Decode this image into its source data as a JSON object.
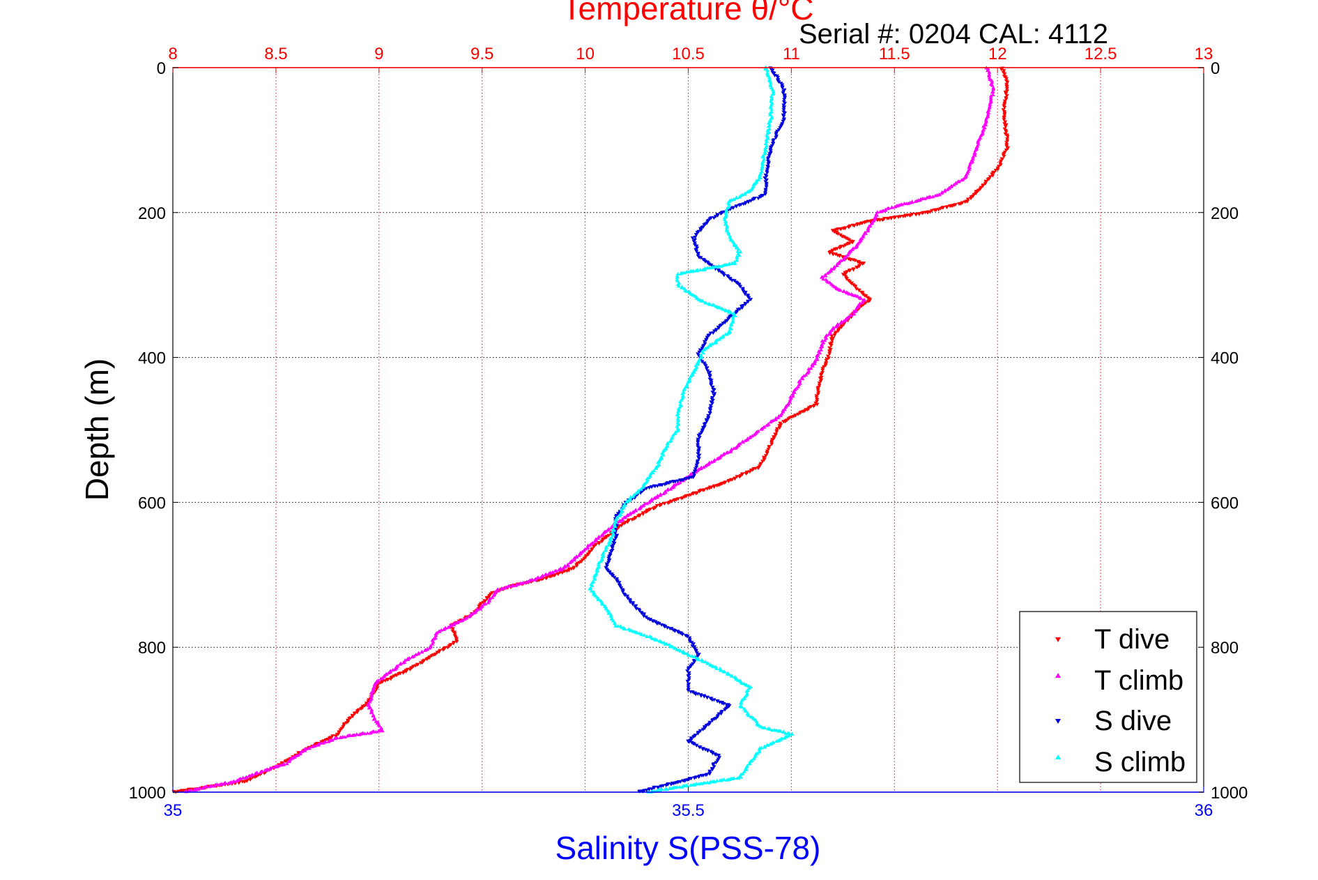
{
  "chart_data": {
    "type": "scatter",
    "title": "Temperature θ/°C",
    "subtitle": "Serial #: 0204  CAL: 4112",
    "ylabel": "Depth (m)",
    "xlabel": "Salinity S(PSS-78)",
    "y_axis": {
      "range": [
        0,
        1000
      ],
      "reversed": true,
      "ticks": [
        0,
        200,
        400,
        600,
        800,
        1000
      ]
    },
    "top_axis": {
      "label": "Temperature θ/°C",
      "range": [
        8,
        13
      ],
      "ticks": [
        8,
        8.5,
        9,
        9.5,
        10,
        10.5,
        11,
        11.5,
        12,
        12.5,
        13
      ],
      "color": "#ff0000"
    },
    "bottom_axis": {
      "label": "Salinity S(PSS-78)",
      "range": [
        35,
        36
      ],
      "ticks": [
        35,
        35.5,
        36
      ],
      "color": "#0000ff"
    },
    "grid": true,
    "legend": {
      "placement": "bottom-right",
      "entries": [
        "T dive",
        "T climb",
        "S dive",
        "S climb"
      ]
    },
    "series": [
      {
        "name": "T dive",
        "axis": "temperature",
        "color": "#ff0000",
        "marker": "triangle-down",
        "points": [
          [
            12.02,
            0
          ],
          [
            12.05,
            20
          ],
          [
            12.03,
            60
          ],
          [
            12.05,
            110
          ],
          [
            12.0,
            140
          ],
          [
            11.92,
            165
          ],
          [
            11.85,
            185
          ],
          [
            11.65,
            200
          ],
          [
            11.38,
            212
          ],
          [
            11.2,
            225
          ],
          [
            11.3,
            240
          ],
          [
            11.18,
            255
          ],
          [
            11.35,
            270
          ],
          [
            11.25,
            285
          ],
          [
            11.3,
            300
          ],
          [
            11.38,
            320
          ],
          [
            11.3,
            340
          ],
          [
            11.2,
            370
          ],
          [
            11.18,
            400
          ],
          [
            11.15,
            420
          ],
          [
            11.13,
            445
          ],
          [
            11.12,
            465
          ],
          [
            10.95,
            490
          ],
          [
            10.9,
            520
          ],
          [
            10.85,
            550
          ],
          [
            10.7,
            570
          ],
          [
            10.55,
            585
          ],
          [
            10.35,
            605
          ],
          [
            10.18,
            630
          ],
          [
            10.05,
            660
          ],
          [
            9.95,
            690
          ],
          [
            9.8,
            705
          ],
          [
            9.65,
            715
          ],
          [
            9.55,
            725
          ],
          [
            9.5,
            740
          ],
          [
            9.45,
            755
          ],
          [
            9.35,
            770
          ],
          [
            9.38,
            790
          ],
          [
            9.3,
            805
          ],
          [
            9.15,
            830
          ],
          [
            9.0,
            850
          ],
          [
            8.95,
            875
          ],
          [
            8.85,
            900
          ],
          [
            8.8,
            920
          ],
          [
            8.65,
            940
          ],
          [
            8.5,
            965
          ],
          [
            8.35,
            985
          ],
          [
            8.0,
            1000
          ]
        ]
      },
      {
        "name": "T climb",
        "axis": "temperature",
        "color": "#ff00ff",
        "marker": "triangle-up",
        "points": [
          [
            11.95,
            0
          ],
          [
            11.98,
            30
          ],
          [
            11.95,
            70
          ],
          [
            11.9,
            110
          ],
          [
            11.85,
            150
          ],
          [
            11.72,
            175
          ],
          [
            11.5,
            192
          ],
          [
            11.42,
            200
          ],
          [
            11.38,
            220
          ],
          [
            11.32,
            245
          ],
          [
            11.25,
            265
          ],
          [
            11.15,
            290
          ],
          [
            11.22,
            305
          ],
          [
            11.35,
            320
          ],
          [
            11.3,
            340
          ],
          [
            11.2,
            360
          ],
          [
            11.15,
            380
          ],
          [
            11.12,
            405
          ],
          [
            11.05,
            430
          ],
          [
            11.0,
            455
          ],
          [
            10.95,
            480
          ],
          [
            10.85,
            500
          ],
          [
            10.7,
            530
          ],
          [
            10.55,
            555
          ],
          [
            10.42,
            580
          ],
          [
            10.25,
            610
          ],
          [
            10.12,
            635
          ],
          [
            10.0,
            665
          ],
          [
            9.9,
            690
          ],
          [
            9.72,
            710
          ],
          [
            9.58,
            720
          ],
          [
            9.52,
            740
          ],
          [
            9.42,
            760
          ],
          [
            9.28,
            780
          ],
          [
            9.25,
            800
          ],
          [
            9.12,
            820
          ],
          [
            8.98,
            850
          ],
          [
            8.95,
            880
          ],
          [
            8.98,
            900
          ],
          [
            9.02,
            915
          ],
          [
            8.8,
            925
          ],
          [
            8.65,
            940
          ],
          [
            8.55,
            960
          ],
          [
            8.3,
            985
          ],
          [
            8.05,
            1000
          ]
        ]
      },
      {
        "name": "S dive",
        "axis": "salinity",
        "color": "#0000dd",
        "marker": "triangle-down",
        "points": [
          [
            35.58,
            0
          ],
          [
            35.593,
            30
          ],
          [
            35.593,
            70
          ],
          [
            35.58,
            110
          ],
          [
            35.575,
            150
          ],
          [
            35.575,
            175
          ],
          [
            35.54,
            195
          ],
          [
            35.52,
            210
          ],
          [
            35.505,
            235
          ],
          [
            35.51,
            260
          ],
          [
            35.53,
            280
          ],
          [
            35.55,
            300
          ],
          [
            35.56,
            320
          ],
          [
            35.54,
            345
          ],
          [
            35.52,
            370
          ],
          [
            35.51,
            395
          ],
          [
            35.52,
            420
          ],
          [
            35.525,
            450
          ],
          [
            35.52,
            480
          ],
          [
            35.51,
            510
          ],
          [
            35.51,
            540
          ],
          [
            35.505,
            565
          ],
          [
            35.46,
            580
          ],
          [
            35.44,
            600
          ],
          [
            35.43,
            620
          ],
          [
            35.43,
            645
          ],
          [
            35.425,
            670
          ],
          [
            35.42,
            690
          ],
          [
            35.43,
            705
          ],
          [
            35.44,
            730
          ],
          [
            35.46,
            760
          ],
          [
            35.5,
            785
          ],
          [
            35.51,
            810
          ],
          [
            35.5,
            830
          ],
          [
            35.5,
            860
          ],
          [
            35.54,
            880
          ],
          [
            35.52,
            905
          ],
          [
            35.5,
            930
          ],
          [
            35.53,
            950
          ],
          [
            35.52,
            975
          ],
          [
            35.45,
            1000
          ]
        ]
      },
      {
        "name": "S climb",
        "axis": "salinity",
        "color": "#00ffff",
        "marker": "triangle-up",
        "points": [
          [
            35.575,
            0
          ],
          [
            35.582,
            30
          ],
          [
            35.58,
            70
          ],
          [
            35.575,
            110
          ],
          [
            35.57,
            150
          ],
          [
            35.56,
            170
          ],
          [
            35.54,
            185
          ],
          [
            35.535,
            210
          ],
          [
            35.54,
            235
          ],
          [
            35.55,
            255
          ],
          [
            35.545,
            270
          ],
          [
            35.49,
            285
          ],
          [
            35.49,
            300
          ],
          [
            35.51,
            320
          ],
          [
            35.545,
            340
          ],
          [
            35.54,
            365
          ],
          [
            35.515,
            390
          ],
          [
            35.505,
            420
          ],
          [
            35.495,
            450
          ],
          [
            35.49,
            480
          ],
          [
            35.49,
            500
          ],
          [
            35.48,
            520
          ],
          [
            35.47,
            550
          ],
          [
            35.455,
            580
          ],
          [
            35.44,
            600
          ],
          [
            35.43,
            625
          ],
          [
            35.425,
            650
          ],
          [
            35.415,
            680
          ],
          [
            35.41,
            700
          ],
          [
            35.405,
            720
          ],
          [
            35.42,
            745
          ],
          [
            35.43,
            770
          ],
          [
            35.47,
            790
          ],
          [
            35.5,
            810
          ],
          [
            35.53,
            830
          ],
          [
            35.56,
            855
          ],
          [
            35.55,
            880
          ],
          [
            35.57,
            910
          ],
          [
            35.6,
            920
          ],
          [
            35.57,
            940
          ],
          [
            35.56,
            960
          ],
          [
            35.55,
            980
          ],
          [
            35.46,
            1000
          ]
        ]
      }
    ]
  }
}
